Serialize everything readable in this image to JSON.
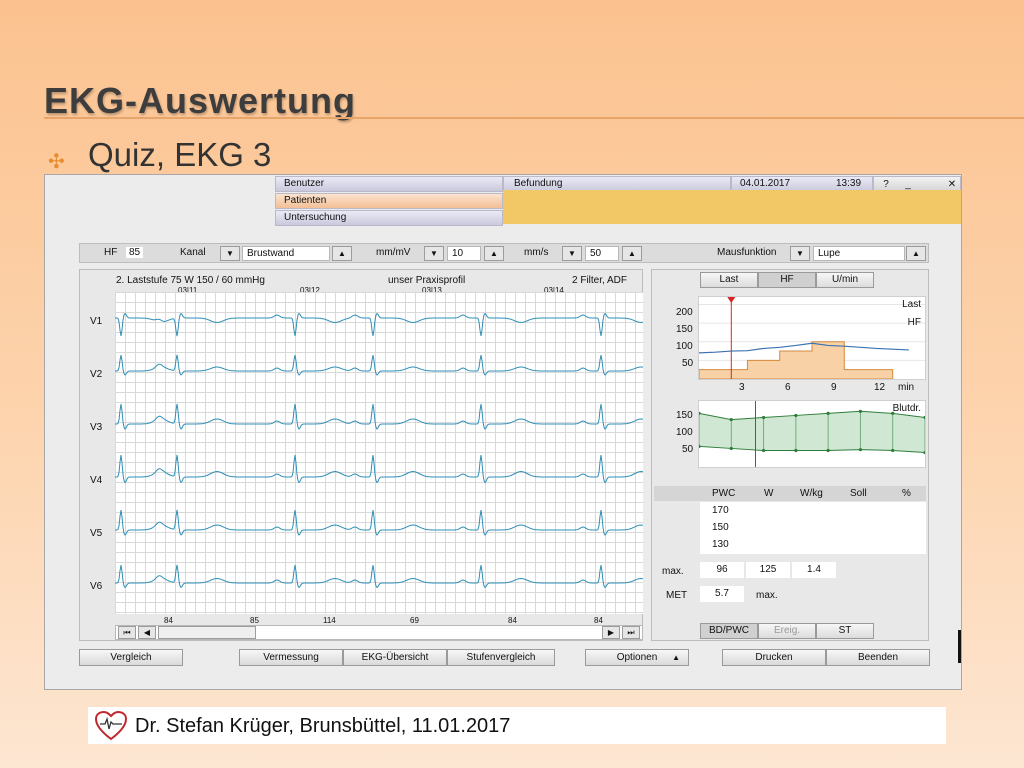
{
  "slide": {
    "title": "EKG-Auswertung",
    "bullet": "Quiz, EKG 3",
    "footer": "Dr. Stefan Krüger, Brunsbüttel, 11.01.2017"
  },
  "app": {
    "menu": [
      "Benutzer",
      "Patienten",
      "Untersuchung"
    ],
    "header": {
      "section": "Befundung",
      "date": "04.01.2017",
      "time": "13:39",
      "help": "?",
      "minimize": "_",
      "close": "✕"
    },
    "toolbar": {
      "hf_label": "HF",
      "hf_value": "85",
      "kanal_label": "Kanal",
      "kanal_value": "Brustwand",
      "mmmv_label": "mm/mV",
      "mmmv_value": "10",
      "mms_label": "mm/s",
      "mms_value": "50",
      "maus_label": "Mausfunktion",
      "maus_value": "Lupe"
    },
    "ecg": {
      "stage_info": "2. Laststufe  75 W   150 / 60 mmHg",
      "profile": "unser Praxisprofil",
      "filter": "2 Filter, ADF",
      "time_marks": [
        "03|11",
        "03|12",
        "03|13",
        "03|14"
      ],
      "leads": [
        "V1",
        "V2",
        "V3",
        "V4",
        "V5",
        "V6"
      ],
      "heart_rates": [
        "84",
        "85",
        "114",
        "69",
        "84",
        "84"
      ]
    },
    "right": {
      "tabs": [
        "Last",
        "HF",
        "U/min"
      ],
      "trend_labels": {
        "last": "Last",
        "hf": "HF",
        "blutdr": "Blutdr."
      },
      "top_y_ticks": [
        "200",
        "150",
        "100",
        "50"
      ],
      "x_ticks": [
        "3",
        "6",
        "9",
        "12"
      ],
      "x_unit": "min",
      "bp_y_ticks": [
        "150",
        "100",
        "50"
      ],
      "table_headers": [
        "PWC",
        "W",
        "W/kg",
        "Soll",
        "%"
      ],
      "pwc_rows": [
        "170",
        "150",
        "130"
      ],
      "max_label": "max.",
      "max_values": {
        "pwc": "96",
        "w": "125",
        "wkg": "1.4"
      },
      "met_label": "MET",
      "met_value": "5.7",
      "met_suffix": "max.",
      "bottom_tabs": [
        "BD/PWC",
        "Ereig.",
        "ST"
      ]
    },
    "buttons": {
      "vergleich": "Vergleich",
      "vermessung": "Vermessung",
      "ekg_uebersicht": "EKG-Übersicht",
      "stufenvergleich": "Stufenvergleich",
      "optionen": "Optionen",
      "drucken": "Drucken",
      "beenden": "Beenden"
    },
    "chart_data": [
      {
        "type": "line",
        "title": "",
        "series": [
          {
            "name": "Last",
            "x": [
              0,
              2,
              3,
              4,
              5,
              6,
              7,
              8,
              9,
              12
            ],
            "values": [
              25,
              25,
              50,
              50,
              75,
              75,
              100,
              100,
              25,
              25
            ]
          },
          {
            "name": "HF",
            "x": [
              0,
              1,
              2,
              3,
              4,
              5,
              6,
              7,
              8,
              9,
              10,
              11,
              12,
              13
            ],
            "values": [
              70,
              72,
              75,
              76,
              82,
              85,
              90,
              96,
              90,
              88,
              85,
              82,
              80,
              78
            ]
          }
        ],
        "xlabel": "min",
        "ylim": [
          0,
          220
        ],
        "xlim": [
          0,
          14
        ]
      },
      {
        "type": "line",
        "title": "",
        "series": [
          {
            "name": "Blutdr.",
            "x": [
              0,
              2,
              4,
              6,
              8,
              10,
              12,
              14
            ],
            "values": [
              150,
              135,
              140,
              145,
              150,
              155,
              150,
              140
            ]
          },
          {
            "name": "",
            "x": [
              0,
              2,
              4,
              6,
              8,
              10,
              12,
              14
            ],
            "values": [
              70,
              65,
              60,
              60,
              60,
              62,
              60,
              55
            ]
          }
        ],
        "ylim": [
          20,
          180
        ],
        "xlim": [
          0,
          14
        ]
      }
    ]
  }
}
